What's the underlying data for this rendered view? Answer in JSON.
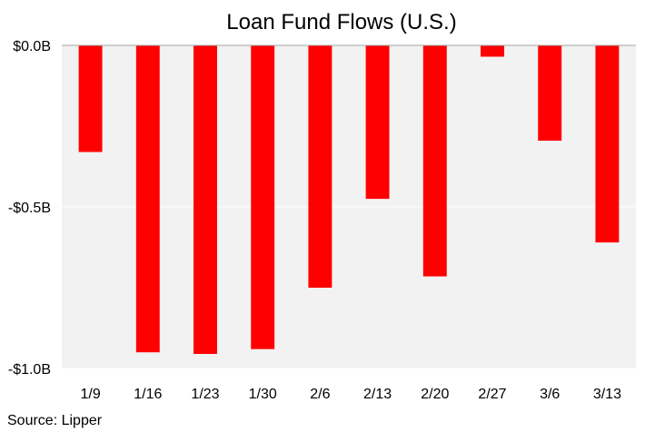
{
  "chart_data": {
    "type": "bar",
    "title": "Loan Fund Flows (U.S.)",
    "xlabel": "",
    "ylabel": "",
    "categories": [
      "1/9",
      "1/16",
      "1/23",
      "1/30",
      "2/6",
      "2/13",
      "2/20",
      "2/27",
      "3/6",
      "3/13"
    ],
    "values": [
      -0.33,
      -0.95,
      -0.955,
      -0.94,
      -0.75,
      -0.475,
      -0.715,
      -0.035,
      -0.295,
      -0.61
    ],
    "ylim": [
      -1.0,
      0.0
    ],
    "yticks": [
      {
        "value": 0.0,
        "label": "$0.0B"
      },
      {
        "value": -0.5,
        "label": "-$0.5B"
      },
      {
        "value": -1.0,
        "label": "-$1.0B"
      }
    ],
    "grid": true,
    "legend": "none",
    "colors": {
      "bar": "#ff0000",
      "plot_background": "#f2f2f2",
      "gridline": "#ffffff",
      "zero_line": "#a6a6a6"
    },
    "source": "Source: Lipper"
  }
}
